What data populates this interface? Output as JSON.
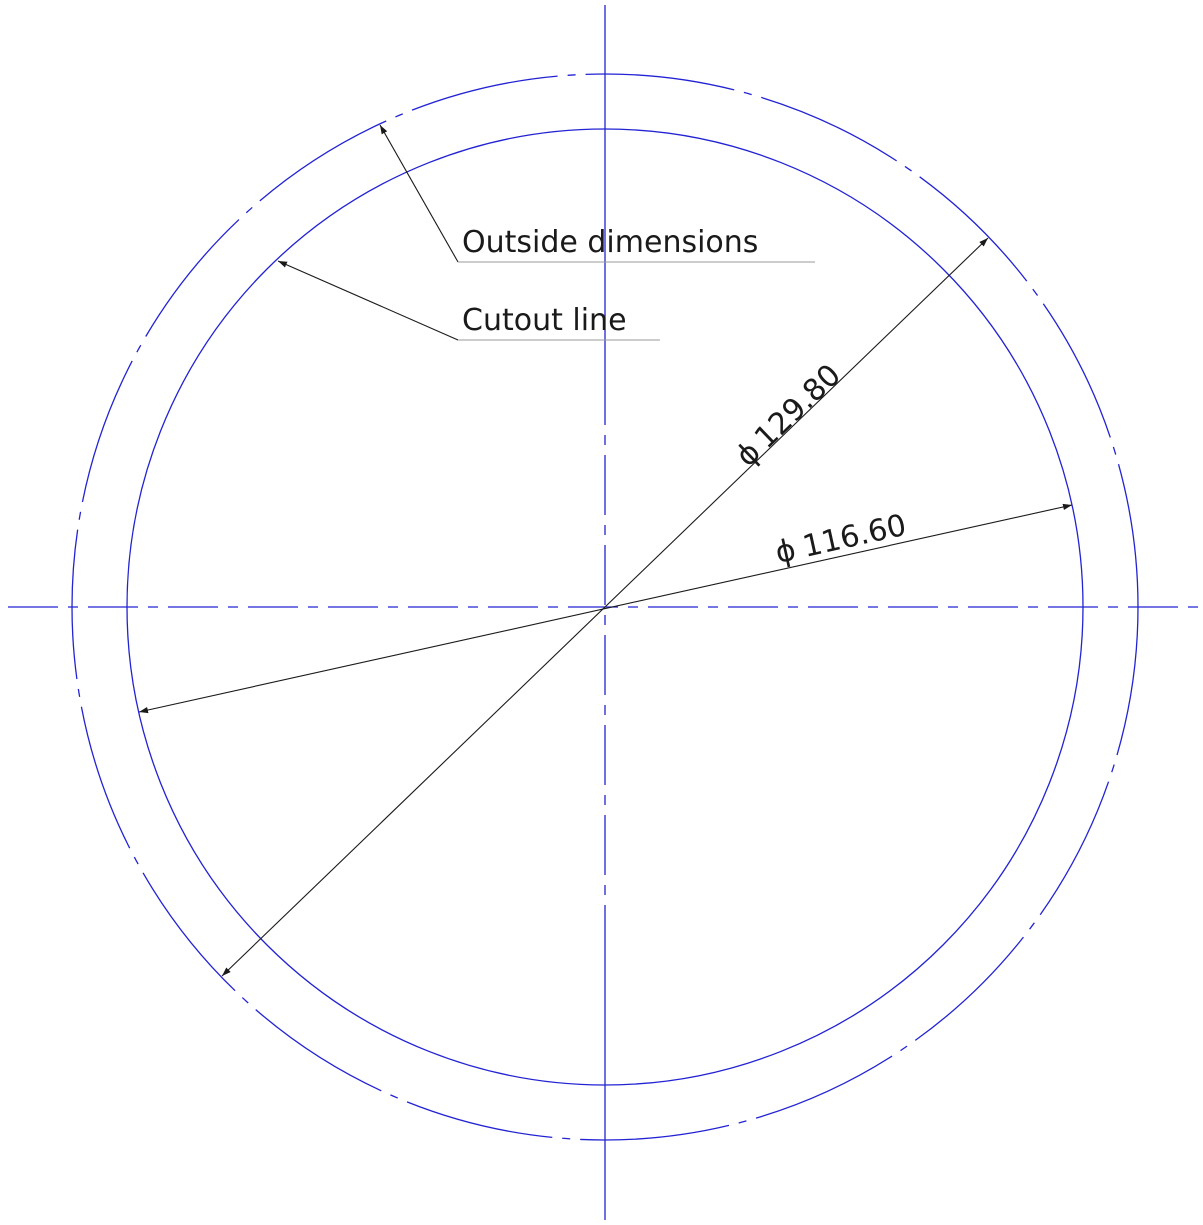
{
  "colors": {
    "geometry": "#2323d4",
    "annotation": "#1a1a1a",
    "underline": "#9a9a9a",
    "background": "#ffffff"
  },
  "annotations": {
    "outside_label": "Outside dimensions",
    "cutout_label": "Cutout line"
  },
  "dimensions": {
    "outer_diameter": "129.80",
    "inner_diameter": "116.60",
    "diameter_symbol": "ϕ"
  }
}
